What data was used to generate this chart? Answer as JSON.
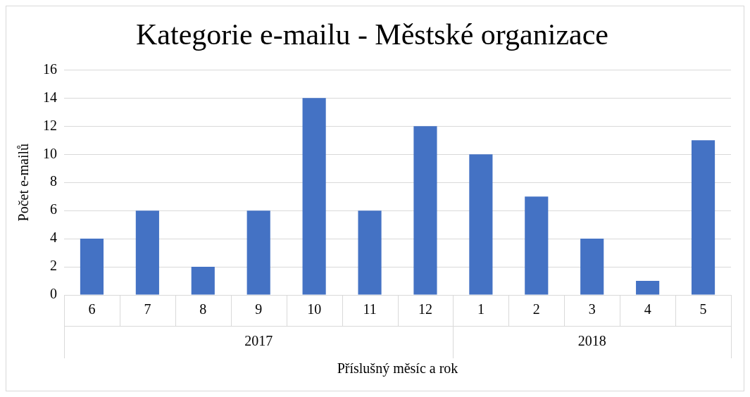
{
  "chart_data": {
    "type": "bar",
    "title": "Kategorie e-mailu - Městské organizace",
    "xlabel": "Příslušný měsíc a rok",
    "ylabel": "Počet e-mailů",
    "categories": [
      "6",
      "7",
      "8",
      "9",
      "10",
      "11",
      "12",
      "1",
      "2",
      "3",
      "4",
      "5"
    ],
    "values": [
      4,
      6,
      2,
      6,
      14,
      6,
      12,
      10,
      7,
      4,
      1,
      11
    ],
    "color": "#4472c4",
    "ylim": [
      0,
      16
    ],
    "yticks": [
      0,
      2,
      4,
      6,
      8,
      10,
      12,
      14,
      16
    ],
    "grid": "y",
    "legend": false,
    "annotations": [
      "2017",
      "2018"
    ]
  }
}
